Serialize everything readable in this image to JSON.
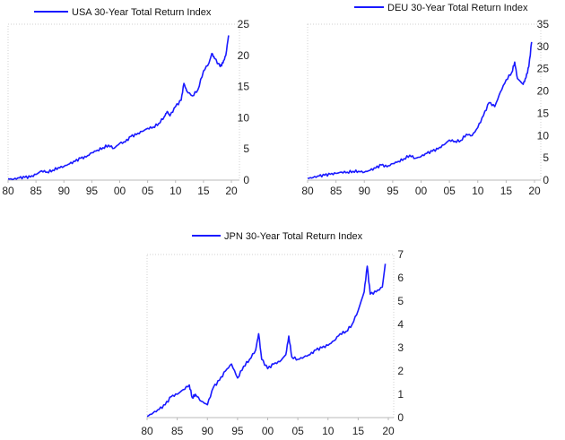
{
  "colors": {
    "series": "#1a1aff",
    "axis": "#b8b8b8",
    "text": "#222222"
  },
  "chart_data": [
    {
      "type": "line",
      "title": "",
      "xlabel": "",
      "ylabel": "",
      "grid": false,
      "legend": "top-left",
      "xlim": [
        1980,
        2020
      ],
      "ylim": [
        0,
        25
      ],
      "x_ticks": [
        1980,
        1985,
        1990,
        1995,
        2000,
        2005,
        2010,
        2015,
        2020
      ],
      "x_tick_labels": [
        "80",
        "85",
        "90",
        "95",
        "00",
        "05",
        "10",
        "15",
        "20"
      ],
      "y_ticks": [
        0,
        5,
        10,
        15,
        20,
        25
      ],
      "y_tick_labels": [
        "0",
        "5",
        "10",
        "15",
        "20",
        "25"
      ],
      "series": [
        {
          "name": "USA 30-Year Total Return Index",
          "x": [
            1980,
            1981,
            1982,
            1983,
            1984,
            1985,
            1986,
            1987,
            1988,
            1989,
            1990,
            1991,
            1992,
            1993,
            1994,
            1995,
            1996,
            1997,
            1998,
            1999,
            2000,
            2001,
            2002,
            2003,
            2004,
            2005,
            2006,
            2007,
            2008,
            2008.5,
            2009,
            2010,
            2011,
            2011.5,
            2012,
            2013,
            2014,
            2015,
            2016,
            2016.5,
            2017,
            2018,
            2018.5,
            2019,
            2019.5
          ],
          "values": [
            0.2,
            0.15,
            0.35,
            0.45,
            0.5,
            0.9,
            1.5,
            1.3,
            1.6,
            2.0,
            2.2,
            2.6,
            3.0,
            3.5,
            3.7,
            4.4,
            4.8,
            5.2,
            5.6,
            5.1,
            5.9,
            6.1,
            7.0,
            7.3,
            7.8,
            8.3,
            8.5,
            9.1,
            10.2,
            11.0,
            10.3,
            11.8,
            12.8,
            15.5,
            14.3,
            13.5,
            14.5,
            17.5,
            18.8,
            20.3,
            19.5,
            18.2,
            18.8,
            20.0,
            23.2
          ]
        }
      ]
    },
    {
      "type": "line",
      "title": "",
      "xlabel": "",
      "ylabel": "",
      "grid": false,
      "legend": "top-center",
      "xlim": [
        1980,
        2020
      ],
      "ylim": [
        0,
        35
      ],
      "x_ticks": [
        1980,
        1985,
        1990,
        1995,
        2000,
        2005,
        2010,
        2015,
        2020
      ],
      "x_tick_labels": [
        "80",
        "85",
        "90",
        "95",
        "00",
        "05",
        "10",
        "15",
        "20"
      ],
      "y_ticks": [
        0,
        5,
        10,
        15,
        20,
        25,
        30,
        35
      ],
      "y_tick_labels": [
        "0",
        "5",
        "10",
        "15",
        "20",
        "25",
        "30",
        "35"
      ],
      "series": [
        {
          "name": "DEU 30-Year Total Return Index",
          "x": [
            1980,
            1981,
            1982,
            1983,
            1984,
            1985,
            1986,
            1987,
            1988,
            1989,
            1990,
            1991,
            1992,
            1993,
            1994,
            1995,
            1996,
            1997,
            1998,
            1999,
            2000,
            2001,
            2002,
            2003,
            2004,
            2005,
            2006,
            2007,
            2008,
            2009,
            2010,
            2011,
            2012,
            2013,
            2014,
            2015,
            2016,
            2016.5,
            2017,
            2018,
            2018.5,
            2019,
            2019.5
          ],
          "values": [
            0.4,
            0.6,
            0.9,
            1.1,
            1.3,
            1.5,
            1.8,
            1.8,
            2.0,
            2.0,
            1.8,
            2.2,
            2.7,
            3.4,
            3.0,
            3.7,
            4.2,
            4.8,
            5.6,
            4.9,
            5.3,
            6.0,
            6.5,
            7.0,
            7.9,
            9.0,
            8.7,
            8.9,
            10.3,
            10.0,
            11.8,
            14.5,
            17.4,
            16.5,
            19.8,
            22.5,
            24.2,
            26.5,
            22.8,
            21.5,
            23.0,
            25.5,
            31.0
          ]
        }
      ]
    },
    {
      "type": "line",
      "title": "",
      "xlabel": "",
      "ylabel": "",
      "grid": false,
      "legend": "top-left",
      "xlim": [
        1980,
        2020
      ],
      "ylim": [
        0,
        7
      ],
      "x_ticks": [
        1980,
        1985,
        1990,
        1995,
        2000,
        2005,
        2010,
        2015,
        2020
      ],
      "x_tick_labels": [
        "80",
        "85",
        "90",
        "95",
        "00",
        "05",
        "10",
        "15",
        "20"
      ],
      "y_ticks": [
        0,
        1,
        2,
        3,
        4,
        5,
        6,
        7
      ],
      "y_tick_labels": [
        "0",
        "1",
        "2",
        "3",
        "4",
        "5",
        "6",
        "7"
      ],
      "series": [
        {
          "name": "JPN 30-Year Total Return Index",
          "x": [
            1980,
            1981,
            1982,
            1983,
            1984,
            1985,
            1986,
            1987,
            1987.5,
            1988,
            1989,
            1990,
            1991,
            1992,
            1993,
            1994,
            1995,
            1996,
            1997,
            1998,
            1998.5,
            1999,
            2000,
            2001,
            2002,
            2003,
            2003.5,
            2004,
            2005,
            2006,
            2007,
            2008,
            2009,
            2010,
            2011,
            2012,
            2013,
            2014,
            2015,
            2016,
            2016.5,
            2017,
            2018,
            2019,
            2019.5
          ],
          "values": [
            0.05,
            0.2,
            0.35,
            0.55,
            0.9,
            1.0,
            1.2,
            1.4,
            0.85,
            1.0,
            0.7,
            0.55,
            1.3,
            1.6,
            2.0,
            2.3,
            1.7,
            2.2,
            2.5,
            2.9,
            3.6,
            2.5,
            2.1,
            2.3,
            2.4,
            2.7,
            3.5,
            2.6,
            2.5,
            2.6,
            2.7,
            2.9,
            3.0,
            3.1,
            3.3,
            3.6,
            3.7,
            4.0,
            4.6,
            5.4,
            6.5,
            5.3,
            5.4,
            5.6,
            6.6
          ]
        }
      ]
    }
  ]
}
